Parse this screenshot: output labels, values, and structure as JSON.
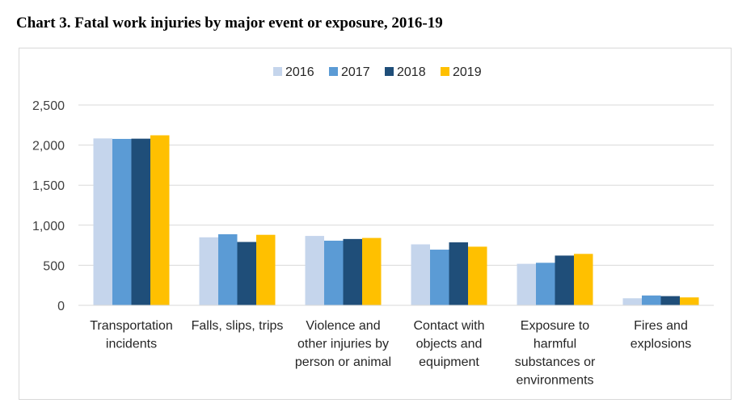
{
  "chart_data": {
    "type": "bar",
    "title": "Chart 3. Fatal work injuries by major event or exposure, 2016-19",
    "xlabel": "",
    "ylabel": "",
    "ylim": [
      0,
      2500
    ],
    "yticks": [
      0,
      500,
      1000,
      1500,
      2000,
      2500
    ],
    "ytick_labels": [
      "0",
      "500",
      "1,000",
      "1,500",
      "2,000",
      "2,500"
    ],
    "grid": true,
    "legend_position": "top-center",
    "categories": [
      [
        "Transportation",
        "incidents"
      ],
      [
        "Falls, slips, trips"
      ],
      [
        "Violence and",
        "other injuries by",
        "person or animal"
      ],
      [
        "Contact with",
        "objects and",
        "equipment"
      ],
      [
        "Exposure to",
        "harmful",
        "substances or",
        "environments"
      ],
      [
        "Fires and",
        "explosions"
      ]
    ],
    "series": [
      {
        "name": "2016",
        "color": "#c5d5ec",
        "values": [
          2083,
          849,
          866,
          761,
          518,
          88
        ]
      },
      {
        "name": "2017",
        "color": "#5b9bd5",
        "values": [
          2077,
          887,
          807,
          695,
          531,
          123
        ]
      },
      {
        "name": "2018",
        "color": "#1f4e79",
        "values": [
          2080,
          791,
          828,
          786,
          621,
          115
        ]
      },
      {
        "name": "2019",
        "color": "#ffc000",
        "values": [
          2122,
          880,
          841,
          732,
          642,
          99
        ]
      }
    ]
  }
}
